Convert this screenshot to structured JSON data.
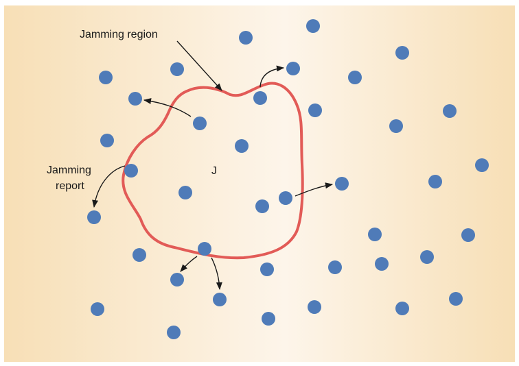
{
  "diagram": {
    "labels": {
      "jamming_region": "Jamming region",
      "jammer": "J",
      "jamming_report_line1": "Jamming",
      "jamming_report_line2": "report"
    },
    "colors": {
      "background_edge": "#f7dfb6",
      "background_center": "#fdf5ea",
      "node": "#4f7bb8",
      "region_boundary": "#e25b57",
      "arrow": "#1a1a1a"
    },
    "node_count": 45
  }
}
